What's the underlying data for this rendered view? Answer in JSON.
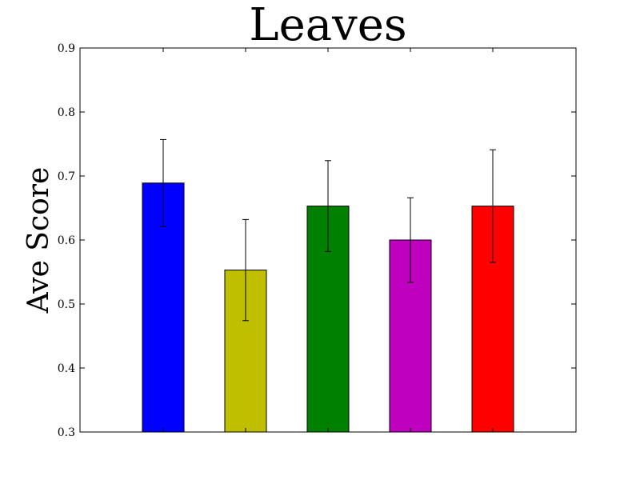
{
  "chart_data": {
    "type": "bar",
    "title": "Leaves",
    "xlabel": "",
    "ylabel": "Ave Score",
    "ylim": [
      0.3,
      0.9
    ],
    "yticks": [
      "0.3",
      "0.4",
      "0.5",
      "0.6",
      "0.7",
      "0.8",
      "0.9"
    ],
    "values": [
      0.689,
      0.553,
      0.653,
      0.6,
      0.653
    ],
    "errors": [
      0.068,
      0.079,
      0.071,
      0.066,
      0.088
    ],
    "colors": [
      "#0000ff",
      "#bfbf00",
      "#008000",
      "#bf00bf",
      "#ff0000"
    ],
    "grid": false
  }
}
